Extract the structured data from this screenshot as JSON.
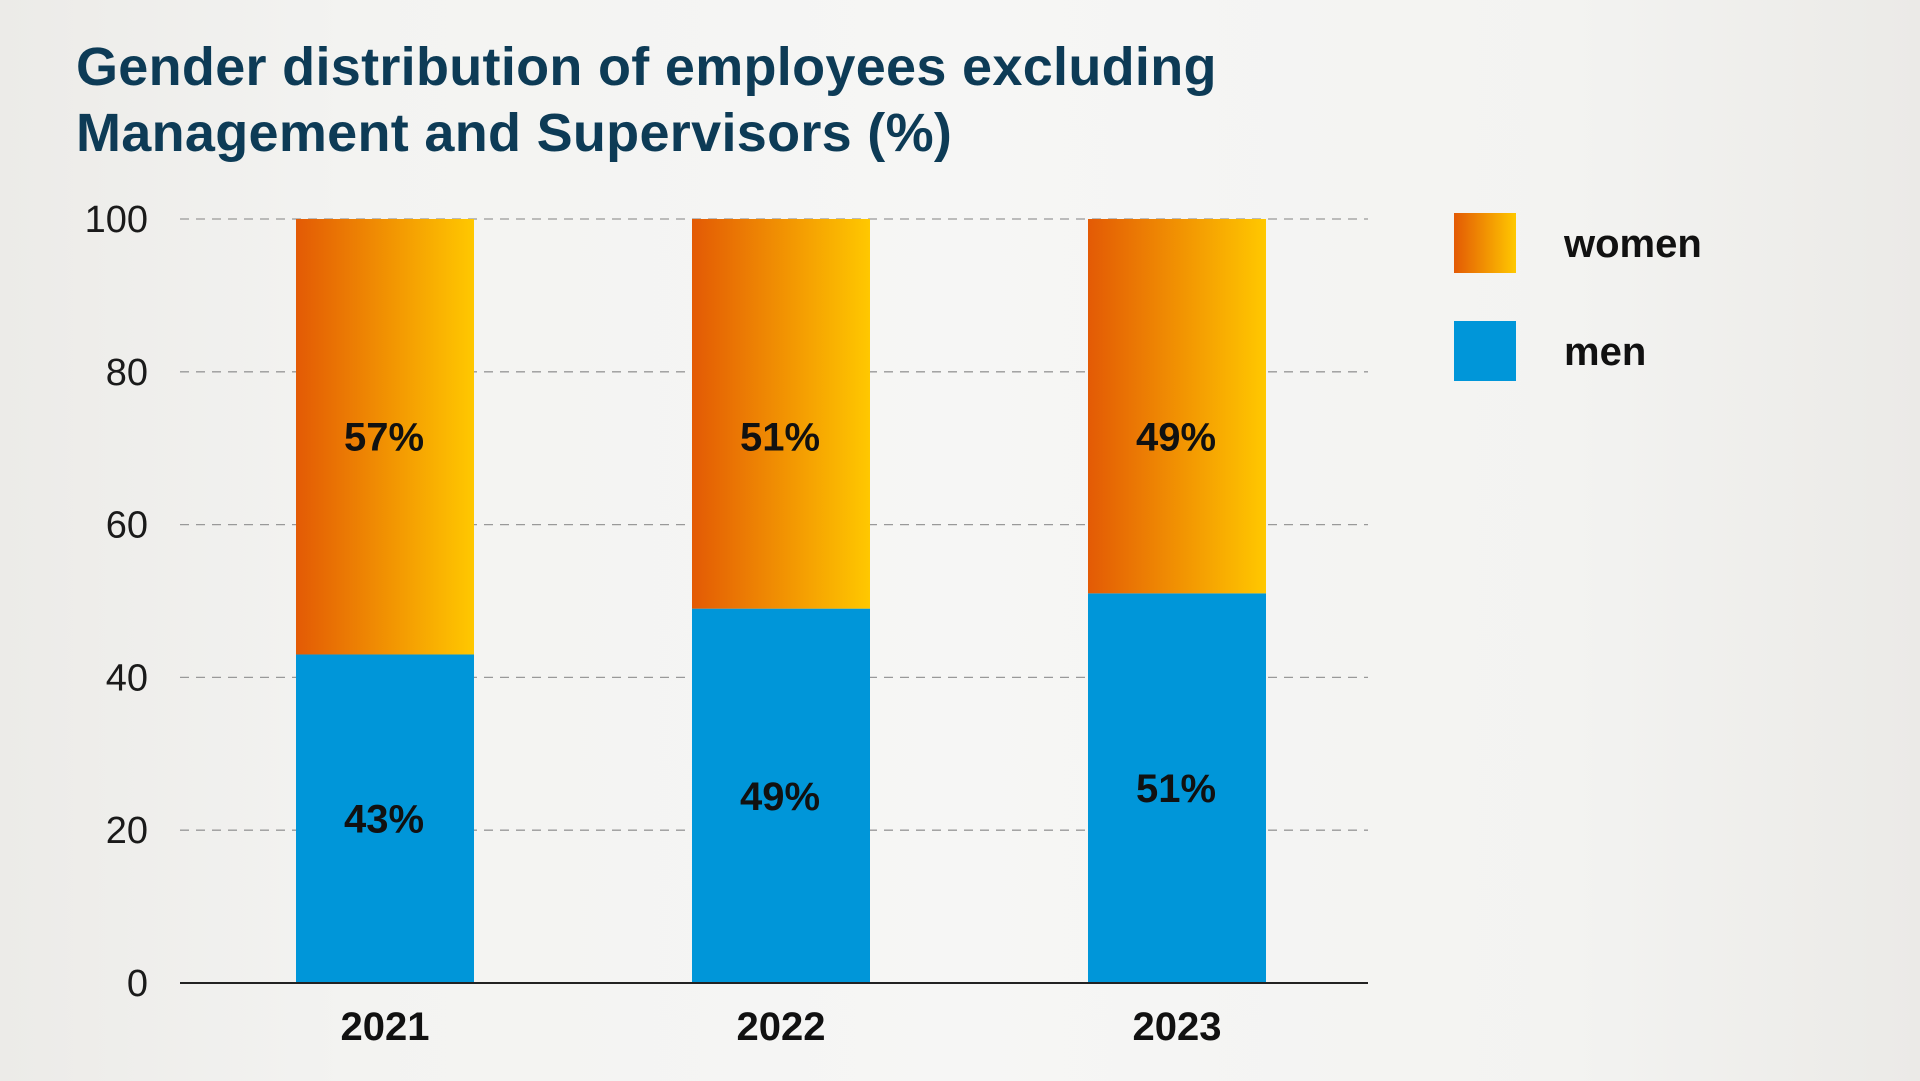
{
  "chart_data": {
    "type": "bar",
    "stacked": true,
    "title_lines": [
      "Gender distribution of employees excluding",
      "Management and Supervisors  (%)"
    ],
    "categories": [
      "2021",
      "2022",
      "2023"
    ],
    "series": [
      {
        "name": "men",
        "values": [
          43,
          49,
          51
        ],
        "labels": [
          "43%",
          "49%",
          "51%"
        ],
        "color": "#0096d9"
      },
      {
        "name": "women",
        "values": [
          57,
          51,
          49
        ],
        "labels": [
          "57%",
          "51%",
          "49%"
        ],
        "color_start": "#e35a05",
        "color_end": "#ffc800"
      }
    ],
    "ylim": [
      0,
      100
    ],
    "yticks": [
      "0",
      "20",
      "40",
      "60",
      "80",
      "100"
    ],
    "grid": "dashed horizontal",
    "legend": {
      "placement": "top-right",
      "order": [
        "women",
        "men"
      ]
    },
    "colors": {
      "title": "#0d3b56",
      "grid": "#999999",
      "axis": "#222222"
    }
  }
}
